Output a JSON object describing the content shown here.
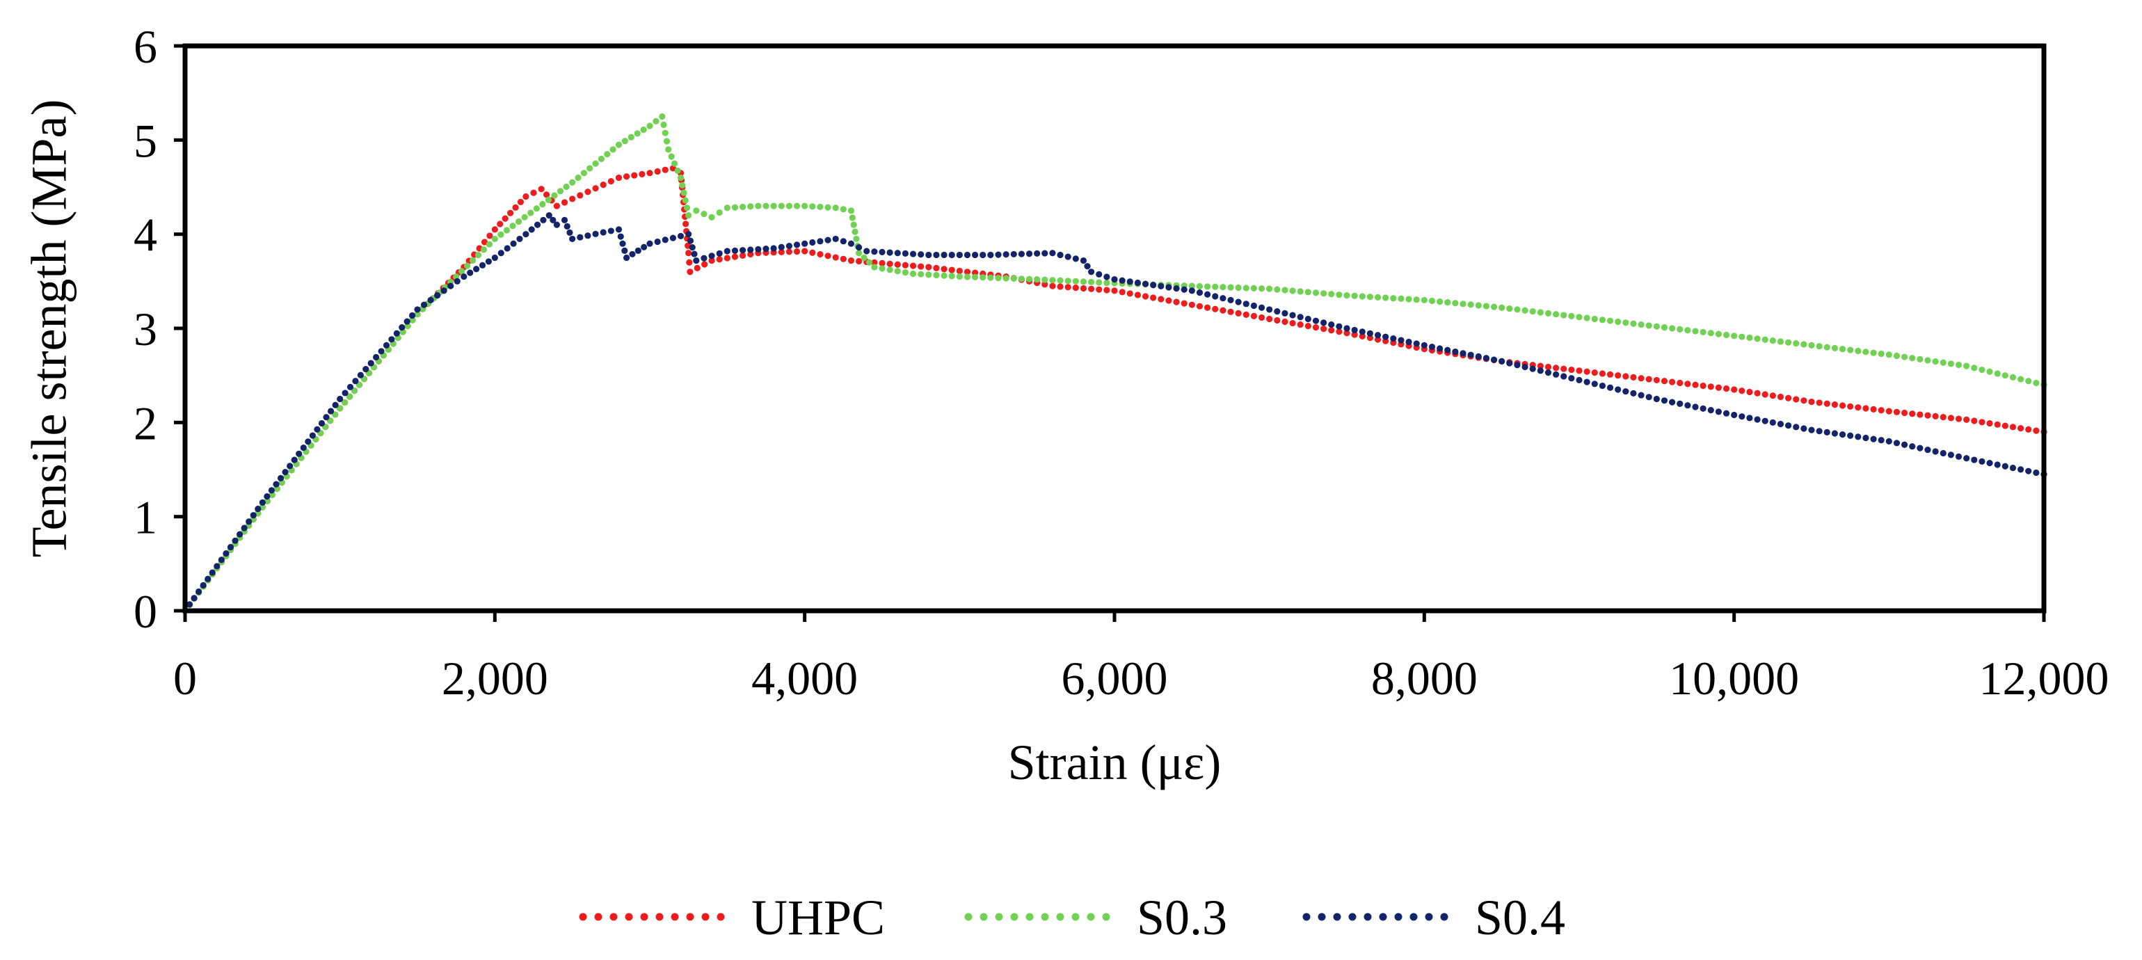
{
  "chart_data": {
    "type": "scatter",
    "title": "",
    "xlabel": "Strain (με)",
    "ylabel": "Tensile strength (MPa)",
    "xlim": [
      0,
      12000
    ],
    "ylim": [
      0,
      6
    ],
    "x_ticks": [
      0,
      2000,
      4000,
      6000,
      8000,
      10000,
      12000
    ],
    "x_tick_labels": [
      "0",
      "2,000",
      "4,000",
      "6,000",
      "8,000",
      "10,000",
      "12,000"
    ],
    "y_ticks": [
      0,
      1,
      2,
      3,
      4,
      5,
      6
    ],
    "y_tick_labels": [
      "0",
      "1",
      "2",
      "3",
      "4",
      "5",
      "6"
    ],
    "grid": false,
    "legend": "bottom",
    "series": [
      {
        "name": "UHPC",
        "color": "#ee1c1c",
        "x": [
          0,
          500,
          1000,
          1500,
          1800,
          2000,
          2200,
          2300,
          2400,
          2600,
          2800,
          3000,
          3150,
          3200,
          3250,
          3260,
          3400,
          3700,
          4000,
          4300,
          4800,
          5300,
          5600,
          6000,
          6500,
          7000,
          7500,
          8000,
          8500,
          9000,
          9500,
          10000,
          10500,
          11000,
          11500,
          12000
        ],
        "values": [
          0,
          1.1,
          2.15,
          3.15,
          3.65,
          4.05,
          4.4,
          4.48,
          4.3,
          4.45,
          4.6,
          4.65,
          4.7,
          4.65,
          3.8,
          3.6,
          3.72,
          3.8,
          3.82,
          3.72,
          3.65,
          3.55,
          3.45,
          3.4,
          3.25,
          3.1,
          2.95,
          2.78,
          2.65,
          2.55,
          2.45,
          2.35,
          2.22,
          2.12,
          2.03,
          1.9
        ]
      },
      {
        "name": "S0.3",
        "color": "#70d153",
        "x": [
          0,
          500,
          1000,
          1500,
          2000,
          2500,
          2800,
          3000,
          3080,
          3120,
          3200,
          3250,
          3300,
          3400,
          3500,
          3700,
          4000,
          4200,
          4300,
          4350,
          4450,
          4700,
          5000,
          5500,
          6000,
          6500,
          7000,
          7500,
          8000,
          8500,
          9000,
          9500,
          10000,
          10500,
          11000,
          11500,
          12000
        ],
        "values": [
          0,
          1.1,
          2.15,
          3.15,
          3.95,
          4.55,
          4.95,
          5.15,
          5.25,
          4.9,
          4.6,
          4.2,
          4.25,
          4.18,
          4.28,
          4.3,
          4.3,
          4.28,
          4.25,
          3.8,
          3.65,
          3.58,
          3.55,
          3.52,
          3.48,
          3.45,
          3.42,
          3.35,
          3.3,
          3.22,
          3.12,
          3.02,
          2.92,
          2.82,
          2.72,
          2.6,
          2.4
        ]
      },
      {
        "name": "S0.4",
        "color": "#14246b",
        "x": [
          0,
          500,
          1000,
          1500,
          1800,
          2000,
          2200,
          2350,
          2400,
          2450,
          2500,
          2700,
          2800,
          2850,
          3000,
          3200,
          3250,
          3300,
          3500,
          3800,
          4000,
          4200,
          4300,
          4400,
          4800,
          5200,
          5600,
          5800,
          5850,
          6000,
          6500,
          7000,
          7500,
          8000,
          8500,
          9000,
          9500,
          10000,
          10500,
          11000,
          11500,
          12000
        ],
        "values": [
          0,
          1.15,
          2.25,
          3.2,
          3.55,
          3.75,
          4.0,
          4.2,
          4.1,
          4.15,
          3.95,
          4.02,
          4.05,
          3.75,
          3.9,
          3.98,
          4.0,
          3.72,
          3.82,
          3.85,
          3.9,
          3.95,
          3.9,
          3.82,
          3.78,
          3.78,
          3.8,
          3.72,
          3.6,
          3.52,
          3.4,
          3.2,
          3.0,
          2.82,
          2.65,
          2.45,
          2.25,
          2.08,
          1.92,
          1.8,
          1.62,
          1.45
        ]
      }
    ]
  }
}
